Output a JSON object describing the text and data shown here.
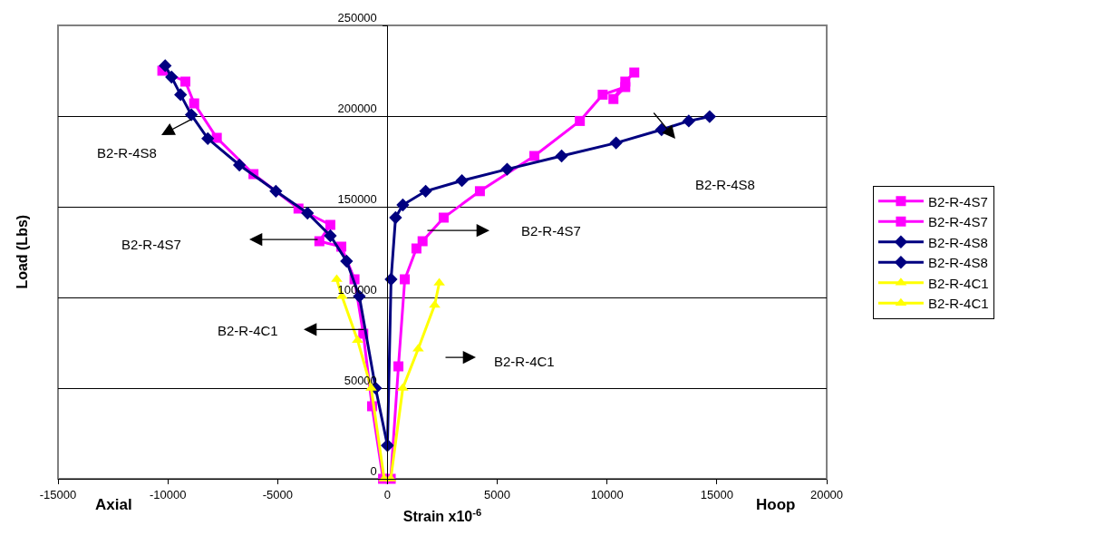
{
  "chart_data": {
    "type": "line",
    "xlabel": "Strain x10$^{-6}$",
    "ylabel": "Load (Lbs)",
    "xlim": [
      -15000,
      20000
    ],
    "xticks": [
      -15000,
      -10000,
      -5000,
      0,
      5000,
      10000,
      15000,
      20000
    ],
    "ylim": [
      0,
      250000
    ],
    "yticks": [
      0,
      50000,
      100000,
      150000,
      200000,
      250000
    ],
    "grid": "y",
    "legend": "right",
    "line_style": "solid",
    "series": [
      {
        "name": "B2-R-4S7",
        "color": "#ff00ff",
        "marker": "square",
        "x": [
          -200,
          -700,
          -1100,
          -1500,
          -2100,
          -3100,
          -2600,
          -4050,
          -6100,
          -7770,
          -8800,
          -9200,
          -10250
        ],
        "values": [
          0,
          40000,
          80000,
          110000,
          128000,
          131000,
          140000,
          149000,
          168000,
          188000,
          207000,
          219000,
          225000
        ]
      },
      {
        "name": "B2-R-4S7",
        "color": "#ff00ff",
        "marker": "square",
        "x": [
          150,
          500,
          790,
          1320,
          1600,
          2560,
          4210,
          6690,
          8760,
          9800,
          10830,
          10290,
          10830,
          11240
        ],
        "values": [
          0,
          62000,
          110000,
          127000,
          131000,
          144000,
          158600,
          178000,
          197300,
          211800,
          216000,
          209400,
          219000,
          224000
        ]
      },
      {
        "name": "B2-R-4S8",
        "color": "#000080",
        "marker": "diamond",
        "x": [
          0,
          -540,
          -1280,
          -1860,
          -2600,
          -3640,
          -5080,
          -6740,
          -8180,
          -8930,
          -9420,
          -9830,
          -10120
        ],
        "values": [
          18400,
          50000,
          100600,
          120000,
          134000,
          146500,
          158600,
          173000,
          187600,
          200700,
          211800,
          221500,
          227800
        ]
      },
      {
        "name": "B2-R-4S8",
        "color": "#000080",
        "marker": "diamond",
        "x": [
          0,
          165,
          370,
          700,
          1740,
          3390,
          5450,
          7930,
          10410,
          12480,
          13720,
          14670
        ],
        "values": [
          18400,
          110000,
          144000,
          151000,
          158600,
          164400,
          170700,
          178000,
          185200,
          192500,
          197300,
          199700
        ]
      },
      {
        "name": "B2-R-4C1",
        "color": "#ffff00",
        "marker": "triangle",
        "x": [
          -150,
          -740,
          -1360,
          -2070,
          -2310
        ],
        "values": [
          0,
          50000,
          76400,
          100600,
          110000
        ]
      },
      {
        "name": "B2-R-4C1",
        "color": "#ffff00",
        "marker": "triangle",
        "x": [
          150,
          700,
          1400,
          2150,
          2360
        ],
        "values": [
          0,
          50000,
          71600,
          95800,
          108000
        ]
      }
    ],
    "annotations": [
      "B2-R-4S8",
      "B2-R-4S7",
      "B2-R-4C1",
      "B2-R-4S8",
      "B2-R-4S7",
      "B2-R-4C1",
      "Axial",
      "Hoop"
    ]
  }
}
